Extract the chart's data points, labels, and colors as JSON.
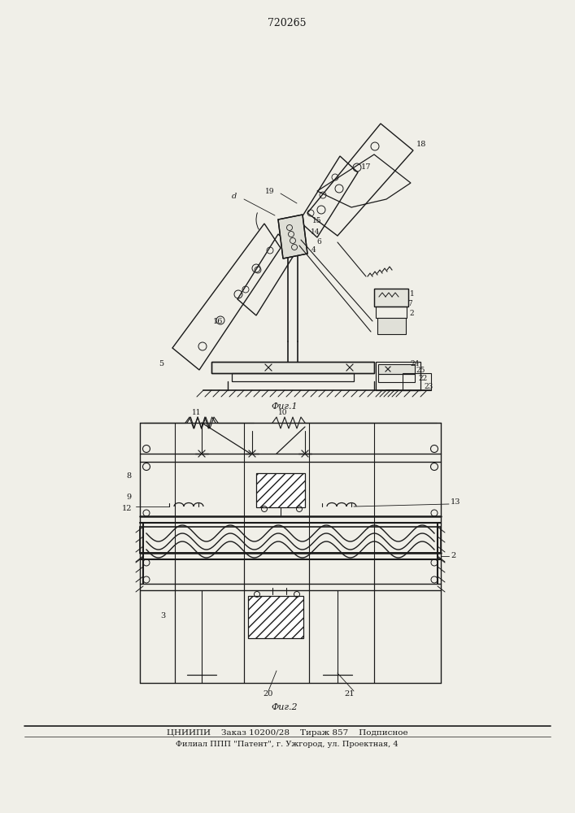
{
  "title": "720265",
  "fig1_label": "Фиг.1",
  "fig2_label": "Фиг.2",
  "footer_line1": "ЦНИИПИ    Заказ 10200/28    Тираж 857    Подписное",
  "footer_line2": "Филиал ППП \"Патент\", г. Ужгород, ул. Проектная, 4",
  "bg_color": "#f0efe8",
  "line_color": "#1a1a1a"
}
